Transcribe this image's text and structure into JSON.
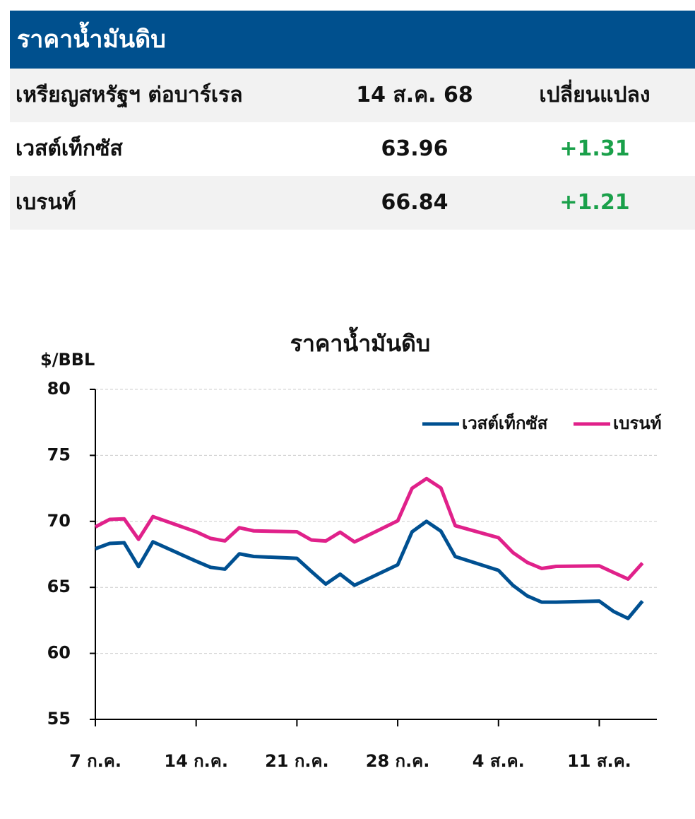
{
  "header": {
    "title": "ราคาน้ำมันดิบ"
  },
  "table": {
    "columns": [
      "เหรียญสหรัฐฯ ต่อบาร์เรล",
      "14 ส.ค. 68",
      "เปลี่ยนแปลง"
    ],
    "rows": [
      [
        "เวสต์เท็กซัส",
        "63.96",
        "+1.31"
      ],
      [
        "เบรนท์",
        "66.84",
        "+1.21"
      ]
    ]
  },
  "chart_data": {
    "type": "line",
    "title": "ราคาน้ำมันดิบ",
    "y_label": "$/BBL",
    "x": [
      0,
      1,
      2,
      3,
      4,
      7,
      8,
      9,
      10,
      11,
      14,
      15,
      16,
      17,
      18,
      21,
      22,
      23,
      24,
      25,
      28,
      29,
      30,
      31,
      32,
      35,
      36,
      37,
      38
    ],
    "xlim": [
      0,
      39
    ],
    "xticks": [
      {
        "value": 0,
        "label": "7 ก.ค."
      },
      {
        "value": 7,
        "label": "14 ก.ค."
      },
      {
        "value": 14,
        "label": "21 ก.ค."
      },
      {
        "value": 21,
        "label": "28 ก.ค."
      },
      {
        "value": 28,
        "label": "4 ส.ค."
      },
      {
        "value": 35,
        "label": "11 ส.ค."
      }
    ],
    "ylim": [
      55,
      80
    ],
    "yticks": [
      55,
      60,
      65,
      70,
      75,
      80
    ],
    "grid": true,
    "legend": "top-right",
    "series": [
      {
        "name": "เวสต์เท็กซัส",
        "color": "#005091",
        "values": [
          67.93,
          68.33,
          68.38,
          66.57,
          68.45,
          66.98,
          66.52,
          66.38,
          67.54,
          67.34,
          67.2,
          66.21,
          65.25,
          66.0,
          65.16,
          66.71,
          69.21,
          70.0,
          69.26,
          67.33,
          66.29,
          65.16,
          64.35,
          63.88,
          63.88,
          63.96,
          63.17,
          62.65,
          63.96
        ]
      },
      {
        "name": "เบรนท์",
        "color": "#e0218a",
        "values": [
          69.58,
          70.15,
          70.19,
          68.64,
          70.36,
          69.21,
          68.71,
          68.52,
          69.52,
          69.28,
          69.21,
          68.59,
          68.51,
          69.18,
          68.44,
          70.04,
          72.51,
          73.24,
          72.53,
          69.67,
          68.76,
          67.64,
          66.89,
          66.43,
          66.59,
          66.63,
          66.12,
          65.63,
          66.84
        ]
      }
    ]
  }
}
